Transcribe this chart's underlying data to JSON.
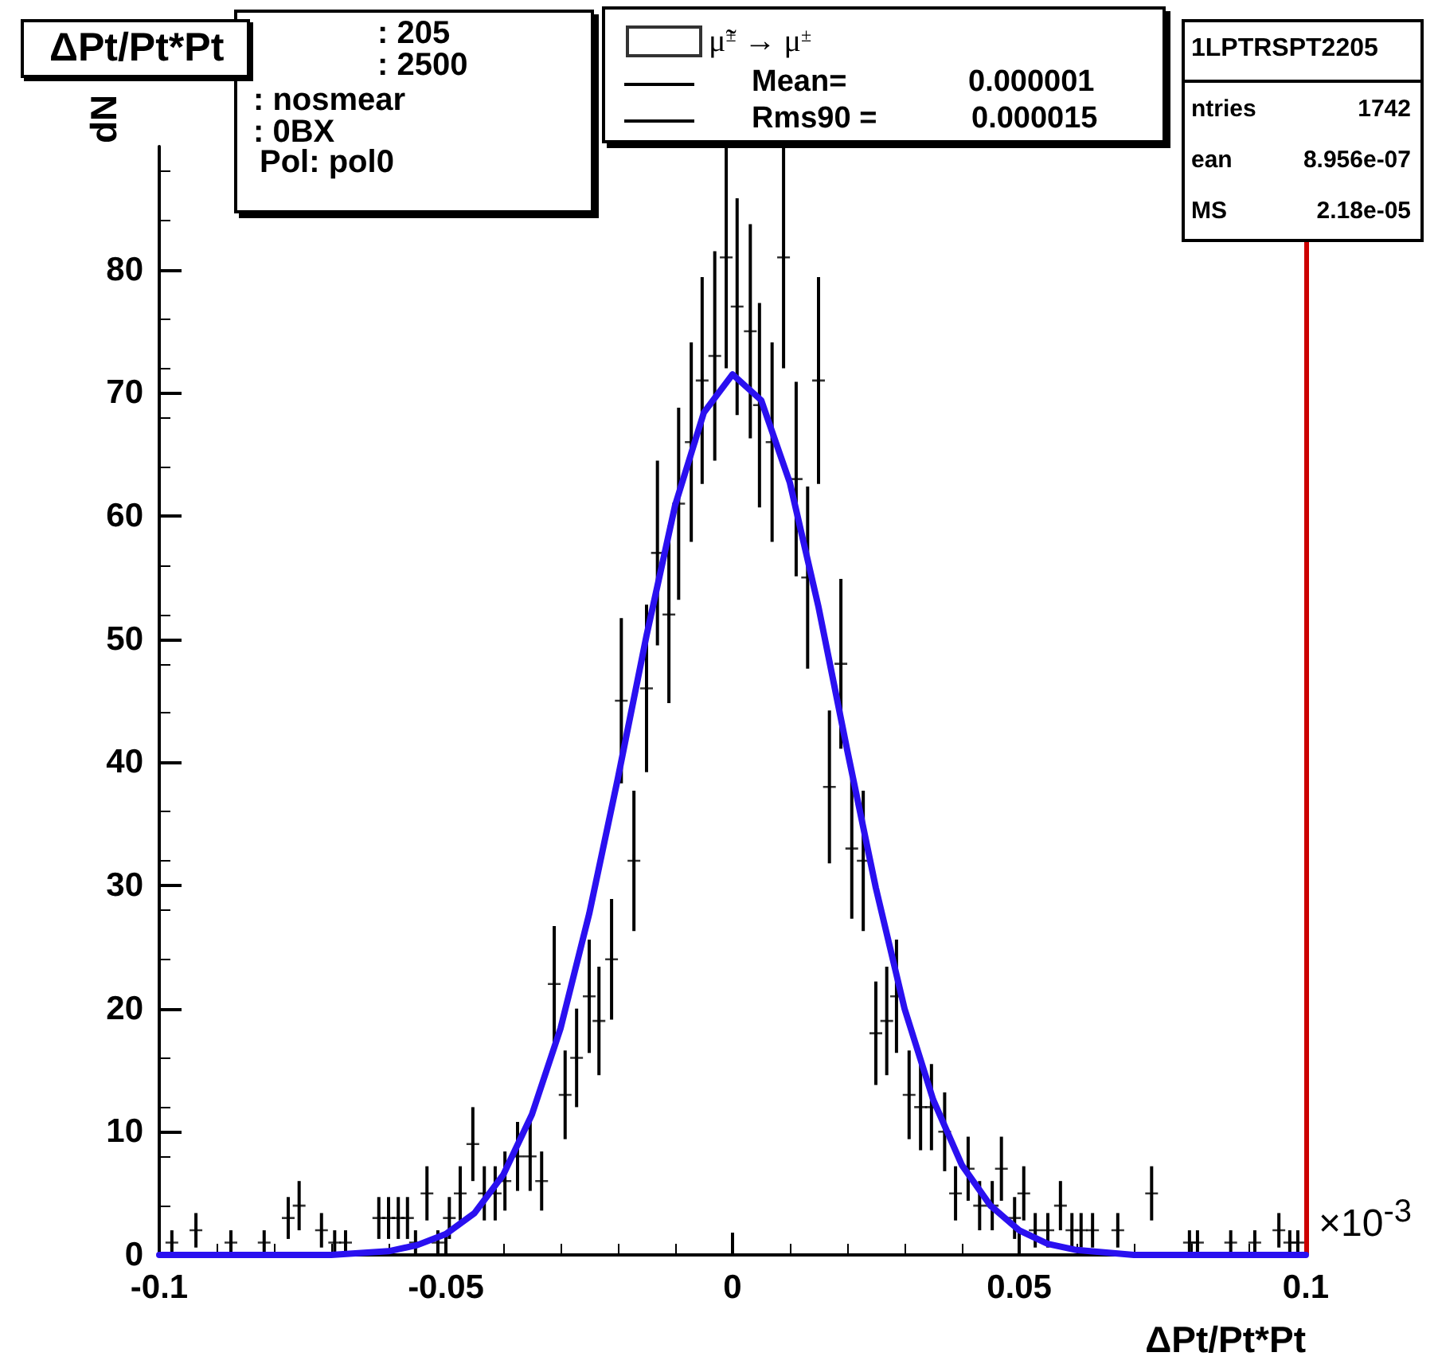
{
  "chart_data": {
    "type": "scatter",
    "title": "ΔPt/Pt*Pt",
    "xlabel": "ΔPt/Pt*Pt",
    "ylabel": "dN",
    "xlim": [
      -0.1,
      0.1
    ],
    "xticks": [
      -0.1,
      -0.05,
      0,
      0.05,
      0.1
    ],
    "ylim": [
      0,
      90
    ],
    "yticks": [
      0,
      10,
      20,
      30,
      40,
      50,
      60,
      70,
      80
    ],
    "grid": false,
    "legend": "top",
    "marker": "cross",
    "series": [
      {
        "name": "μ̃$^{±}$ → μ$^{±}$",
        "color": "#000000",
        "x": [
          -0.0978,
          -0.0936,
          -0.0875,
          -0.0817,
          -0.0775,
          -0.0756,
          -0.0717,
          -0.0694,
          -0.0675,
          -0.0617,
          -0.06,
          -0.0583,
          -0.0567,
          -0.0553,
          -0.0533,
          -0.0514,
          -0.0494,
          -0.0475,
          -0.0453,
          -0.0433,
          -0.0414,
          -0.0397,
          -0.0375,
          -0.0353,
          -0.0333,
          -0.0311,
          -0.0292,
          -0.0272,
          -0.025,
          -0.0233,
          -0.0211,
          -0.0194,
          -0.0172,
          -0.015,
          -0.0131,
          -0.0111,
          -0.0094,
          -0.0072,
          -0.0053,
          -0.0031,
          -0.0011,
          0.0008,
          0.0031,
          0.0047,
          0.0069,
          0.0089,
          0.0111,
          0.0131,
          0.015,
          0.0169,
          0.0189,
          0.0208,
          0.0228,
          0.025,
          0.0269,
          0.0286,
          0.0308,
          0.0328,
          0.0347,
          0.037,
          0.0389,
          0.0411,
          0.0431,
          0.0453,
          0.0469,
          0.0492,
          0.0508,
          0.0528,
          0.055,
          0.0572,
          0.0592,
          0.0608,
          0.0628,
          0.0672,
          0.0731,
          0.0797,
          0.0811,
          0.0869,
          0.0911,
          0.0953,
          0.0972,
          0.0986
        ],
        "values": [
          1,
          2,
          1,
          1,
          3,
          4,
          2,
          1,
          1,
          3,
          3,
          3,
          3,
          1,
          5,
          1,
          3,
          5,
          9,
          5,
          5,
          6,
          8,
          8,
          6,
          22,
          13,
          16,
          21,
          19,
          24,
          45,
          32,
          46,
          57,
          52,
          61,
          66,
          71,
          73,
          81,
          77,
          75,
          69,
          66,
          81,
          63,
          55,
          71,
          38,
          48,
          33,
          32,
          18,
          19,
          21,
          13,
          12,
          12,
          10,
          5,
          7,
          4,
          4,
          7,
          3,
          5,
          2,
          2,
          4,
          2,
          2,
          2,
          2,
          5,
          1,
          1,
          1,
          1,
          2,
          1,
          1
        ],
        "errors": [
          1,
          1.4,
          1,
          1,
          1.7,
          2,
          1.4,
          1,
          1,
          1.7,
          1.7,
          1.7,
          1.7,
          1,
          2.2,
          1,
          1.7,
          2.2,
          3,
          2.2,
          2.2,
          2.4,
          2.8,
          2.8,
          2.4,
          4.7,
          3.6,
          4,
          4.6,
          4.4,
          4.9,
          6.7,
          5.7,
          6.8,
          7.5,
          7.2,
          7.8,
          8.1,
          8.4,
          8.5,
          9,
          8.8,
          8.7,
          8.3,
          8.1,
          9,
          7.9,
          7.4,
          8.4,
          6.2,
          6.9,
          5.7,
          5.7,
          4.2,
          4.4,
          4.6,
          3.6,
          3.5,
          3.5,
          3.2,
          2.2,
          2.6,
          2,
          2,
          2.6,
          1.7,
          2.2,
          1.4,
          1.4,
          2,
          1.4,
          1.4,
          1.4,
          1.4,
          2.2,
          1,
          1,
          1,
          1,
          1.4,
          1,
          1
        ]
      },
      {
        "type": "line",
        "color": "#2a10f0",
        "marker": "none",
        "x": [
          -0.1,
          -0.07,
          -0.06,
          -0.055,
          -0.05,
          -0.045,
          -0.04,
          -0.035,
          -0.03,
          -0.025,
          -0.02,
          -0.015,
          -0.01,
          -0.005,
          0,
          0.005,
          0.01,
          0.015,
          0.02,
          0.025,
          0.03,
          0.035,
          0.04,
          0.045,
          0.05,
          0.055,
          0.06,
          0.07,
          0.1
        ],
        "values": [
          0,
          0,
          0.3,
          0.8,
          1.7,
          3.4,
          6.5,
          11.4,
          18.4,
          27.7,
          38.7,
          50.3,
          60.9,
          68.4,
          71.5,
          69.4,
          62.7,
          52.6,
          41,
          29.8,
          20,
          12.6,
          7.3,
          4,
          2,
          0.9,
          0.4,
          0,
          0
        ]
      }
    ],
    "ref_lines": [
      {
        "axis": "x",
        "value": 0.1,
        "color": "#cc0000"
      }
    ],
    "annotations": [
      ": 205",
      ": 2500",
      ": nosmear",
      ": 0BX",
      "Pol: pol0",
      "Mean=",
      "0.000001",
      "Rms90 =",
      "0.000015",
      "1LPTRSPT2205",
      "ntries",
      "1742",
      "ean",
      "8.956e-07",
      "MS",
      "2.18e-05",
      "×10$^{-3}$"
    ]
  }
}
